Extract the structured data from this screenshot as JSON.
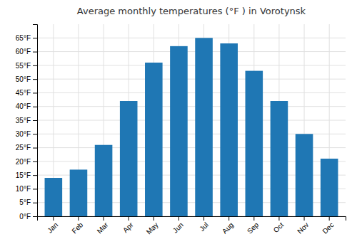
{
  "chart_data": {
    "type": "bar",
    "title": "Average monthly temperatures (°F ) in Vorotynsk",
    "categories": [
      "Jan",
      "Feb",
      "Mar",
      "Apr",
      "May",
      "Jun",
      "Jul",
      "Aug",
      "Sep",
      "Oct",
      "Nov",
      "Dec"
    ],
    "values": [
      14,
      17,
      26,
      42,
      56,
      62,
      65,
      63,
      53,
      42,
      30,
      21
    ],
    "ylim": [
      0,
      70
    ],
    "yticks": [
      {
        "value": 0,
        "label": "0°F"
      },
      {
        "value": 5,
        "label": "5°F"
      },
      {
        "value": 10,
        "label": "10°F"
      },
      {
        "value": 15,
        "label": "15°F"
      },
      {
        "value": 20,
        "label": "20°F"
      },
      {
        "value": 25,
        "label": "25°F"
      },
      {
        "value": 30,
        "label": "30°F"
      },
      {
        "value": 35,
        "label": "35°F"
      },
      {
        "value": 40,
        "label": "40°F"
      },
      {
        "value": 45,
        "label": "45°F"
      },
      {
        "value": 50,
        "label": "50°F"
      },
      {
        "value": 55,
        "label": "55°F"
      },
      {
        "value": 60,
        "label": "60°F"
      },
      {
        "value": 65,
        "label": "65°F"
      }
    ],
    "grid": true
  }
}
